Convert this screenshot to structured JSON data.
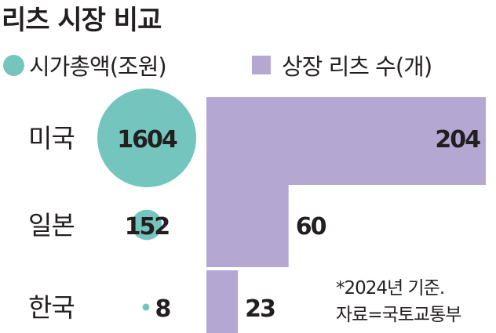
{
  "title": "리츠 시장 비교",
  "colors": {
    "circle": "#73c5bd",
    "bar": "#b4a8d3",
    "text": "#231f20"
  },
  "legend": {
    "circle_label": "시가총액(조원)",
    "bar_label": "상장 리츠 수(개)"
  },
  "chart_data": {
    "type": "bar",
    "title": "리츠 시장 비교",
    "categories": [
      "미국",
      "일본",
      "한국"
    ],
    "series": [
      {
        "name": "시가총액(조원)",
        "mark": "circle",
        "values": [
          1604,
          152,
          8
        ]
      },
      {
        "name": "상장 리츠 수(개)",
        "mark": "bar",
        "values": [
          204,
          60,
          23
        ]
      }
    ]
  },
  "note": {
    "line1": "*2024년 기준.",
    "line2": "자료=국토교통부"
  }
}
